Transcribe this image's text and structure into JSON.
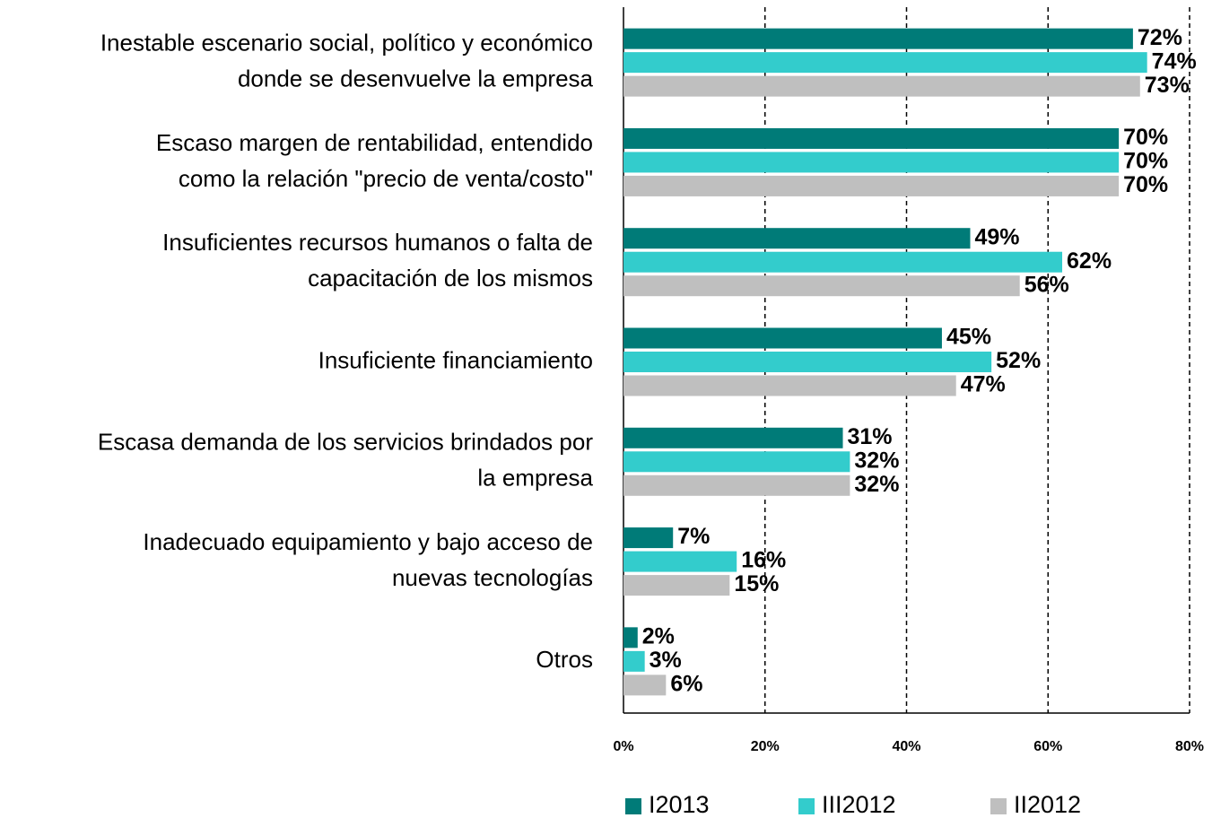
{
  "chart_data": {
    "type": "barh",
    "categories": [
      [
        "Inestable escenario social, político y económico",
        "donde se desenvuelve la empresa"
      ],
      [
        "Escaso margen de rentabilidad, entendido",
        "como la relación \"precio de venta/costo\""
      ],
      [
        "Insuficientes recursos humanos o falta de",
        "capacitación de los mismos"
      ],
      [
        "Insuficiente financiamiento"
      ],
      [
        "Escasa demanda de los servicios brindados por",
        "la empresa"
      ],
      [
        "Inadecuado equipamiento y bajo acceso de",
        "nuevas tecnologías"
      ],
      [
        "Otros"
      ]
    ],
    "series": [
      {
        "name": "I2013",
        "color": "#007b78",
        "values": [
          72,
          70,
          49,
          45,
          31,
          7,
          2
        ],
        "value_labels": [
          "72%",
          "70%",
          "49%",
          "45%",
          "31%",
          "7%",
          "2%"
        ]
      },
      {
        "name": "III2012",
        "color": "#33cccc",
        "values": [
          74,
          70,
          62,
          52,
          32,
          16,
          3
        ],
        "value_labels": [
          "74%",
          "70%",
          "62%",
          "52%",
          "32%",
          "16%",
          "3%"
        ]
      },
      {
        "name": "II2012",
        "color": "#bfbfbf",
        "values": [
          73,
          70,
          56,
          47,
          32,
          15,
          6
        ],
        "value_labels": [
          "73%",
          "70%",
          "56%",
          "47%",
          "32%",
          "15%",
          "6%"
        ]
      }
    ],
    "xlim": [
      0,
      80
    ],
    "xticks": [
      {
        "value": 0,
        "label": "0%"
      },
      {
        "value": 20,
        "label": "20%"
      },
      {
        "value": 40,
        "label": "40%"
      },
      {
        "value": 60,
        "label": "60%"
      },
      {
        "value": 80,
        "label": "80%"
      }
    ],
    "grid": true,
    "legend": "bottom"
  }
}
